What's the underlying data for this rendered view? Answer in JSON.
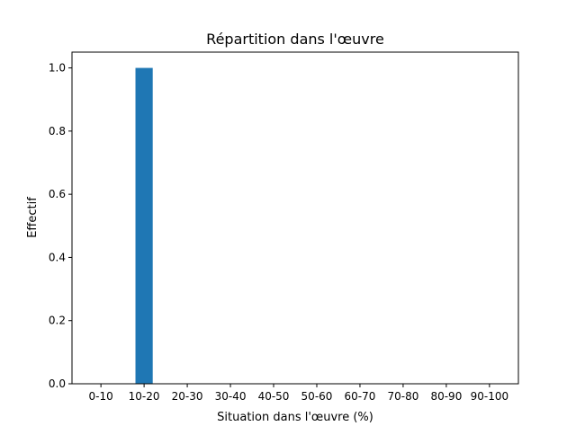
{
  "chart_data": {
    "type": "bar",
    "title": "Répartition dans l'œuvre",
    "xlabel": "Situation dans l'œuvre (%)",
    "ylabel": "Effectif",
    "categories": [
      "0-10",
      "10-20",
      "20-30",
      "30-40",
      "40-50",
      "50-60",
      "60-70",
      "70-80",
      "80-90",
      "90-100"
    ],
    "values": [
      0,
      1,
      0,
      0,
      0,
      0,
      0,
      0,
      0,
      0
    ],
    "ylim": [
      0,
      1.05
    ],
    "yticks": [
      "0.0",
      "0.2",
      "0.4",
      "0.6",
      "0.8",
      "1.0"
    ],
    "grid": false,
    "bar_color": "#1f77b4"
  }
}
